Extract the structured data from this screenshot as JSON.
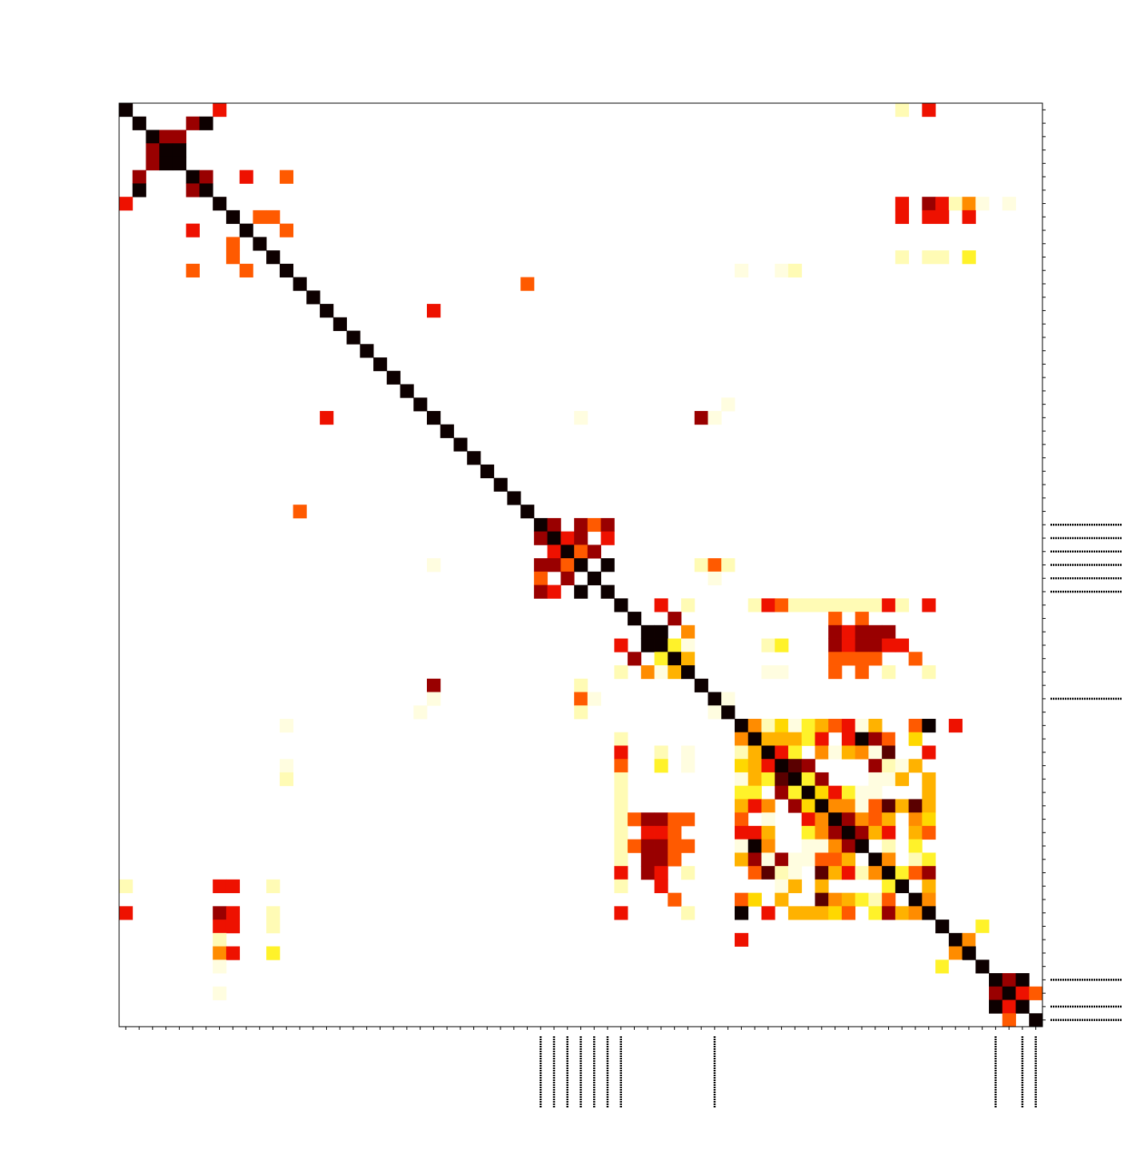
{
  "chart_data": {
    "type": "heatmap",
    "title": "",
    "xlabel": "",
    "ylabel": "",
    "size": 69,
    "colormap": "hot_r",
    "value_range": [
      0,
      1
    ],
    "grid": false,
    "legend": "none",
    "palette": [
      "#ffffff",
      "#fffde0",
      "#fffbb5",
      "#fff22a",
      "#ffd800",
      "#ffb200",
      "#ff8c00",
      "#ff5a00",
      "#ee1100",
      "#990000",
      "#5a0000",
      "#0d0000"
    ],
    "labeled_ticks_x": [
      31,
      32,
      33,
      34,
      35,
      36,
      37,
      44,
      65,
      67,
      68
    ],
    "labeled_ticks_y": [
      31,
      32,
      33,
      34,
      35,
      36,
      44,
      65,
      67,
      68
    ],
    "cells": [
      [
        0,
        7,
        0.75
      ],
      [
        1,
        5,
        0.85
      ],
      [
        1,
        6,
        1.0
      ],
      [
        2,
        3,
        0.85
      ],
      [
        2,
        4,
        0.85
      ],
      [
        3,
        2,
        0.85
      ],
      [
        3,
        3,
        1.0
      ],
      [
        3,
        4,
        1.0
      ],
      [
        4,
        2,
        0.85
      ],
      [
        4,
        3,
        1.0
      ],
      [
        4,
        4,
        1.0
      ],
      [
        5,
        1,
        0.85
      ],
      [
        5,
        6,
        0.85
      ],
      [
        5,
        9,
        0.7
      ],
      [
        5,
        12,
        0.6
      ],
      [
        6,
        1,
        1.0
      ],
      [
        6,
        5,
        0.85
      ],
      [
        7,
        0,
        0.7
      ],
      [
        7,
        61,
        0.72
      ],
      [
        7,
        62,
        0.2
      ],
      [
        7,
        63,
        0.5
      ],
      [
        7,
        66,
        0.1
      ],
      [
        8,
        10,
        0.6
      ],
      [
        8,
        11,
        0.6
      ],
      [
        8,
        61,
        0.7
      ],
      [
        8,
        63,
        0.72
      ],
      [
        9,
        5,
        0.7
      ],
      [
        9,
        12,
        0.6
      ],
      [
        10,
        8,
        0.6
      ],
      [
        11,
        8,
        0.6
      ],
      [
        11,
        61,
        0.2
      ],
      [
        11,
        63,
        0.25
      ],
      [
        12,
        5,
        0.6
      ],
      [
        12,
        9,
        0.6
      ],
      [
        12,
        46,
        0.2
      ],
      [
        12,
        50,
        0.2
      ],
      [
        13,
        30,
        0.6
      ],
      [
        15,
        23,
        0.7
      ],
      [
        22,
        45,
        0.1
      ],
      [
        23,
        15,
        0.7
      ],
      [
        23,
        34,
        0.1
      ],
      [
        23,
        43,
        0.85
      ],
      [
        23,
        44,
        0.1
      ],
      [
        30,
        13,
        0.6
      ],
      [
        34,
        23,
        0.1
      ],
      [
        34,
        43,
        0.2
      ],
      [
        34,
        44,
        0.6
      ],
      [
        34,
        45,
        0.2
      ],
      [
        35,
        44,
        0.1
      ],
      [
        37,
        40,
        0.7
      ],
      [
        37,
        42,
        0.1
      ],
      [
        37,
        47,
        0.1
      ],
      [
        37,
        49,
        0.65
      ],
      [
        37,
        51,
        0.15
      ],
      [
        37,
        52,
        0.15
      ],
      [
        37,
        53,
        0.15
      ],
      [
        37,
        55,
        0.15
      ],
      [
        37,
        56,
        0.15
      ],
      [
        37,
        58,
        0.15
      ],
      [
        37,
        60,
        0.72
      ],
      [
        38,
        55,
        0.62
      ],
      [
        39,
        57,
        0.8
      ],
      [
        40,
        57,
        0.8
      ],
      [
        39,
        55,
        0.8
      ],
      [
        40,
        55,
        0.8
      ],
      [
        40,
        37,
        0.72
      ],
      [
        40,
        42,
        0.1
      ],
      [
        40,
        49,
        0.25
      ],
      [
        40,
        56,
        0.65
      ],
      [
        39,
        56,
        0.72
      ],
      [
        40,
        58,
        0.72
      ],
      [
        41,
        38,
        0.85
      ],
      [
        41,
        54,
        0.6
      ],
      [
        41,
        55,
        0.62
      ],
      [
        41,
        59,
        0.6
      ],
      [
        42,
        37,
        0.15
      ],
      [
        42,
        40,
        0.1
      ],
      [
        42,
        49,
        0.1
      ],
      [
        42,
        55,
        0.62
      ],
      [
        42,
        60,
        0.15
      ],
      [
        43,
        23,
        0.85
      ],
      [
        43,
        34,
        0.2
      ],
      [
        44,
        23,
        0.1
      ],
      [
        44,
        34,
        0.62
      ],
      [
        44,
        35,
        0.1
      ],
      [
        44,
        45,
        0.1
      ],
      [
        45,
        22,
        0.05
      ],
      [
        45,
        34,
        0.15
      ],
      [
        46,
        12,
        0.1
      ],
      [
        46,
        62,
        0.7
      ],
      [
        47,
        37,
        0.15
      ],
      [
        48,
        37,
        0.72
      ],
      [
        48,
        40,
        0.15
      ],
      [
        48,
        42,
        0.1
      ],
      [
        49,
        12,
        0.1
      ],
      [
        50,
        37,
        0.2
      ],
      [
        51,
        37,
        0.2
      ],
      [
        52,
        37,
        0.2
      ],
      [
        53,
        37,
        0.2
      ],
      [
        54,
        37,
        0.2
      ],
      [
        55,
        37,
        0.15
      ],
      [
        53,
        38,
        0.62
      ],
      [
        53,
        39,
        0.85
      ],
      [
        53,
        40,
        0.85
      ],
      [
        53,
        41,
        0.6
      ],
      [
        53,
        42,
        0.62
      ],
      [
        54,
        39,
        0.7
      ],
      [
        54,
        40,
        0.72
      ],
      [
        56,
        37,
        0.2
      ],
      [
        57,
        37,
        0.7
      ],
      [
        57,
        40,
        0.72
      ],
      [
        57,
        42,
        0.15
      ],
      [
        56,
        39,
        0.8
      ],
      [
        56,
        40,
        0.85
      ],
      [
        56,
        41,
        0.6
      ],
      [
        58,
        0,
        0.15
      ],
      [
        58,
        7,
        0.72
      ],
      [
        58,
        8,
        0.7
      ],
      [
        58,
        11,
        0.2
      ],
      [
        59,
        46,
        0.65
      ],
      [
        60,
        0,
        0.7
      ],
      [
        60,
        7,
        0.8
      ],
      [
        60,
        8,
        0.7
      ],
      [
        60,
        11,
        0.2
      ],
      [
        64,
        7,
        0.1
      ]
    ],
    "blocks": [
      {
        "start": 31,
        "end": 36,
        "min": 0.6,
        "max": 1.0
      },
      {
        "start": 39,
        "end": 42,
        "min": 0.0,
        "max": 1.0
      },
      {
        "start": 46,
        "end": 60,
        "min": 0.0,
        "max": 1.0
      },
      {
        "start": 61,
        "end": 64,
        "min": 0.0,
        "max": 1.0
      },
      {
        "start": 65,
        "end": 68,
        "min": 0.6,
        "max": 1.0
      }
    ]
  }
}
